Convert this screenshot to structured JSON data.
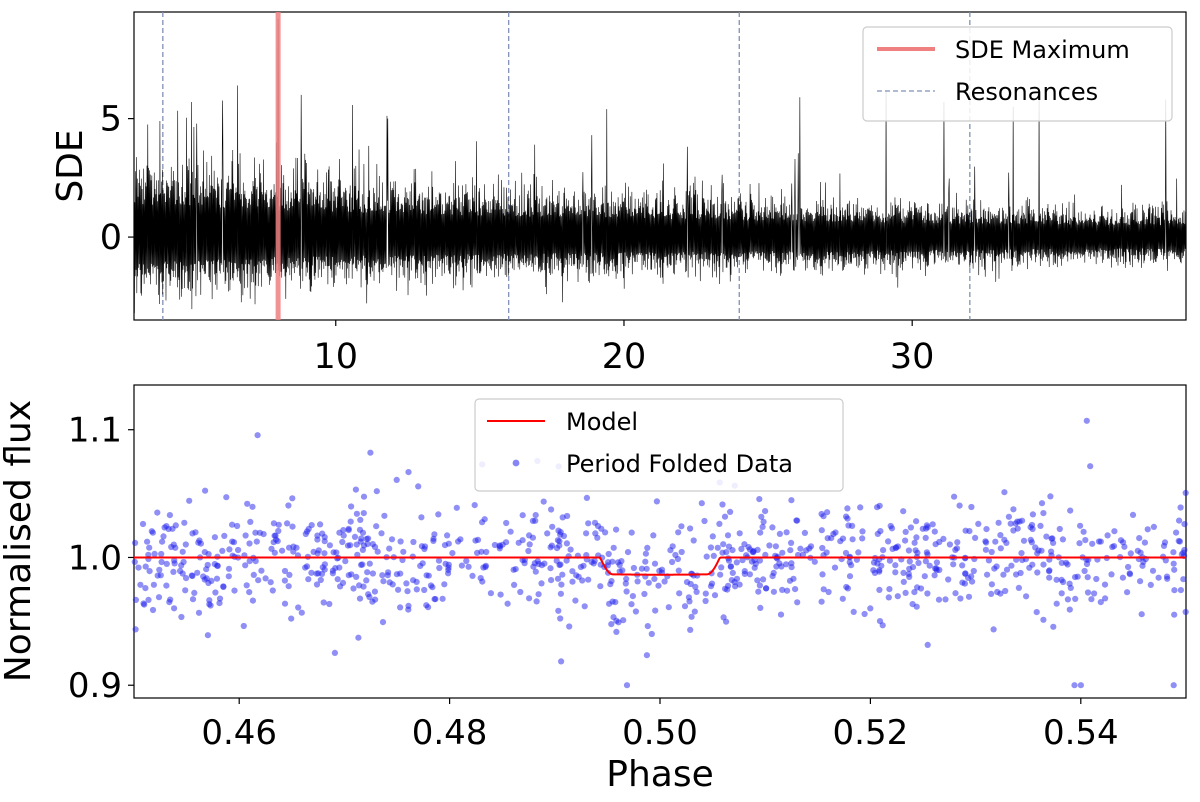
{
  "colors": {
    "sde_line": "#000000",
    "sde_max": "#f08080",
    "resonance": "#8090b8",
    "model": "#ff0000",
    "data_points": "#2020ee",
    "background": "#ffffff",
    "axes": "#000000"
  },
  "chart_data": [
    {
      "type": "line",
      "ylabel": "SDE",
      "xlabel": "",
      "xlim": [
        3.0,
        39.5
      ],
      "ylim": [
        -3.5,
        9.5
      ],
      "xticks": [
        10,
        20,
        30
      ],
      "xtick_labels": [
        "10",
        "20",
        "30"
      ],
      "yticks": [
        0,
        5
      ],
      "ytick_labels": [
        "0",
        "5"
      ],
      "grid": false,
      "legend_position": "top-right",
      "legend": [
        {
          "key": "sde_max",
          "label": "SDE Maximum"
        },
        {
          "key": "resonances",
          "label": "Resonances"
        }
      ],
      "sde_maximum_period": 8.0,
      "sde_maximum_value": 9.2,
      "resonance_periods": [
        4.0,
        16.0,
        24.0,
        32.0
      ],
      "noise_envelope": {
        "periods": [
          3.0,
          8.0,
          16.0,
          24.0,
          32.0,
          39.5
        ],
        "upper": [
          4.0,
          3.2,
          2.5,
          2.0,
          1.6,
          1.4
        ],
        "lower": [
          -3.0,
          -2.4,
          -2.0,
          -1.7,
          -1.5,
          -1.3
        ]
      },
      "notable_peaks": [
        {
          "period": 3.9,
          "value": 4.9
        },
        {
          "period": 5.0,
          "value": 5.7
        },
        {
          "period": 6.6,
          "value": 6.4
        },
        {
          "period": 8.0,
          "value": 9.2
        },
        {
          "period": 8.8,
          "value": 6.0
        },
        {
          "period": 11.8,
          "value": 5.0
        },
        {
          "period": 19.4,
          "value": 5.4
        },
        {
          "period": 26.1,
          "value": 5.9
        },
        {
          "period": 29.1,
          "value": 6.2
        },
        {
          "period": 31.1,
          "value": 5.7
        },
        {
          "period": 33.5,
          "value": 5.5
        },
        {
          "period": 34.4,
          "value": 5.9
        },
        {
          "period": 38.8,
          "value": 5.8
        }
      ]
    },
    {
      "type": "scatter",
      "ylabel": "Normalised flux",
      "xlabel": "Phase",
      "xlim": [
        0.45,
        0.55
      ],
      "ylim": [
        0.89,
        1.135
      ],
      "xticks": [
        0.46,
        0.48,
        0.5,
        0.52,
        0.54
      ],
      "xtick_labels": [
        "0.46",
        "0.48",
        "0.50",
        "0.52",
        "0.54"
      ],
      "yticks": [
        0.9,
        1.0,
        1.1
      ],
      "ytick_labels": [
        "0.9",
        "1.0",
        "1.1"
      ],
      "grid": false,
      "legend_position": "top-center",
      "legend": [
        {
          "key": "model",
          "label": "Model"
        },
        {
          "key": "data",
          "label": "Period Folded Data"
        }
      ],
      "model": {
        "baseline": 1.0,
        "transit_start": 0.4943,
        "transit_end": 0.5057,
        "ingress_duration": 0.0012,
        "depth": 0.0135
      },
      "data": {
        "n_points": 980,
        "mean": 1.0,
        "scatter_sigma": 0.03,
        "range": [
          0.9,
          1.115
        ]
      }
    }
  ]
}
